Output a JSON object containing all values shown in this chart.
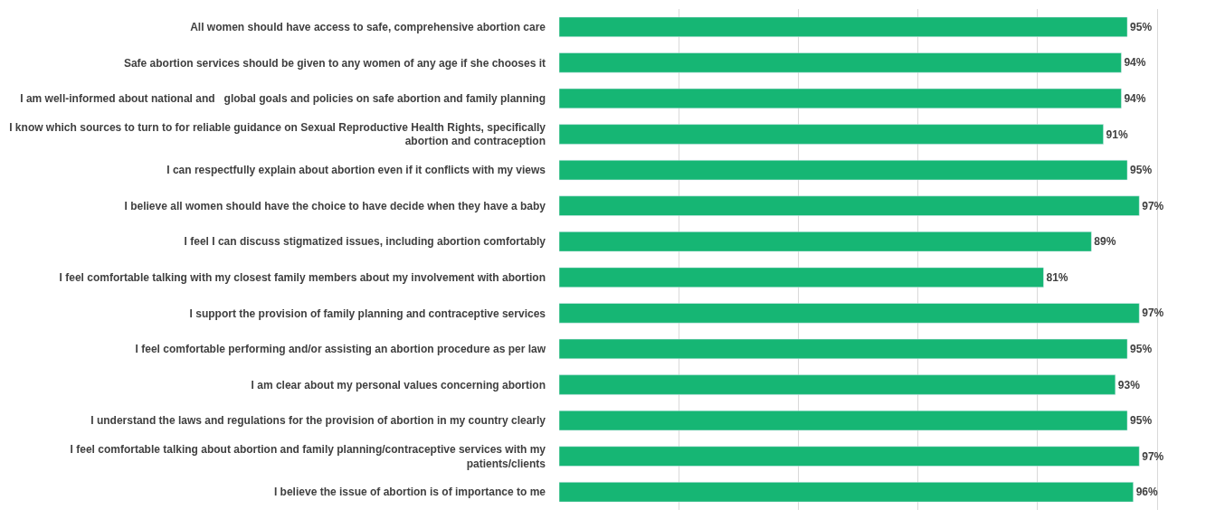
{
  "chart_data": {
    "type": "bar",
    "orientation": "horizontal",
    "categories": [
      "All women should have access to safe, comprehensive abortion care",
      "Safe abortion services should be given to any women of any age if she chooses it",
      "I am well-informed about national and   global goals and policies on safe abortion and family planning",
      "I know which sources to turn to for reliable guidance on Sexual Reproductive Health Rights, specifically\nabortion and contraception",
      "I can respectfully explain about abortion even if it conflicts with my views",
      "I believe all women should have the choice to have decide when they have a baby",
      "I feel I can discuss stigmatized issues, including abortion comfortably",
      "I feel comfortable talking with my closest family members about my involvement with abortion",
      "I support the provision of family planning and contraceptive services",
      "I feel comfortable performing and/or assisting an abortion procedure as per law",
      "I am clear about my personal values concerning abortion",
      "I understand the laws and regulations for the provision of abortion in my country clearly",
      "I feel comfortable talking about abortion and family planning/contraceptive services with my\npatients/clients",
      "I believe the issue of abortion is of importance to me"
    ],
    "values": [
      95,
      94,
      94,
      91,
      95,
      97,
      89,
      81,
      97,
      95,
      93,
      95,
      97,
      96
    ],
    "value_labels": [
      "95%",
      "94%",
      "94%",
      "91%",
      "95%",
      "97%",
      "89%",
      "81%",
      "97%",
      "95%",
      "93%",
      "95%",
      "97%",
      "96%"
    ],
    "color": "#16b674",
    "tick_labels": "y",
    "grid": "x"
  }
}
